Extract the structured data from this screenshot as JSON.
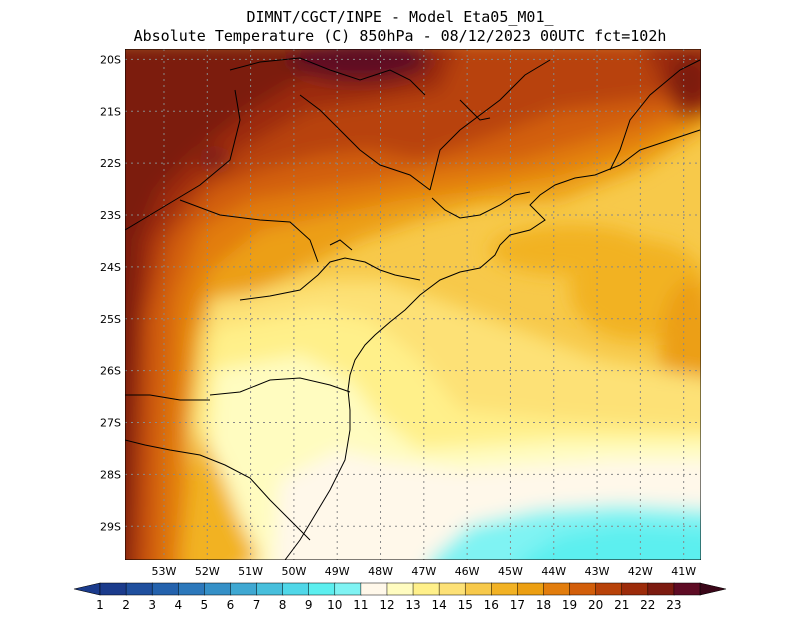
{
  "header": {
    "line1": "DIMNT/CGCT/INPE  -  Model Eta05_M01_",
    "line2": "Absolute Temperature (C) 850hPa  -  08/12/2023 00UTC fct=102h"
  },
  "map": {
    "lon_range": [
      -53.9,
      -40.6
    ],
    "lat_range": [
      -29.65,
      -19.8
    ],
    "lat_labels": [
      "20S",
      "21S",
      "22S",
      "23S",
      "24S",
      "25S",
      "26S",
      "27S",
      "28S",
      "29S"
    ],
    "lon_labels": [
      "53W",
      "52W",
      "51W",
      "50W",
      "49W",
      "48W",
      "47W",
      "46W",
      "45W",
      "44W",
      "43W",
      "42W",
      "41W"
    ]
  },
  "colorbar": {
    "labels": [
      "1",
      "2",
      "3",
      "4",
      "5",
      "6",
      "7",
      "8",
      "9",
      "10",
      "11",
      "12",
      "13",
      "14",
      "15",
      "16",
      "17",
      "18",
      "19",
      "20",
      "21",
      "22",
      "23"
    ],
    "colors": [
      "#1b3b8c",
      "#1f4f9e",
      "#2462ad",
      "#2c78bb",
      "#3590c7",
      "#3fa8d2",
      "#47bfdc",
      "#50d7e8",
      "#5cefef",
      "#7ff3f3",
      "#fff8ea",
      "#fffcc0",
      "#fff08a",
      "#fde176",
      "#f7c94a",
      "#f2b224",
      "#ec9f12",
      "#e27d0d",
      "#d25e0a",
      "#b84209",
      "#9c2b0a",
      "#7c1b10",
      "#5e0b24"
    ],
    "arrow_left": "#1b3b8c",
    "arrow_right": "#3a0618"
  }
}
